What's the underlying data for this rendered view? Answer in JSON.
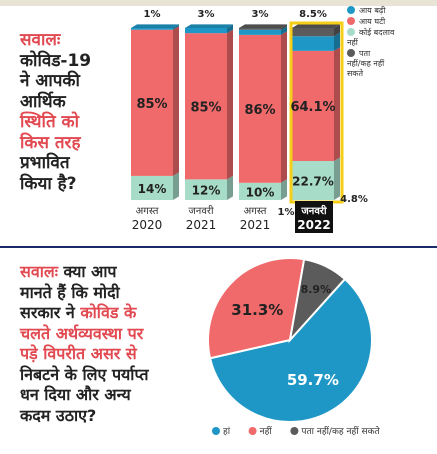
{
  "colors": {
    "red": "#f06a6b",
    "teal": "#a7dcc9",
    "blue": "#1e97c6",
    "gray": "#5b5b5b",
    "highlight_border": "#f6cd17",
    "label_bg": "#111111",
    "question_red": "#e24a52"
  },
  "question1": {
    "prefix": "सवालः",
    "line1": "कोविड-19",
    "line2": "ने आपकी",
    "line3": "आर्थिक",
    "line4": "स्थिति को",
    "line5": "किस तरह",
    "line6": "प्रभावित",
    "line7": "किया है?"
  },
  "question2": {
    "prefix": "सवालः",
    "line1_rest": "क्या आप",
    "line2": "मानते हैं कि मोदी",
    "line3_dark": "सरकार ने",
    "line3_red": "कोविड के",
    "line4": "चलते अर्थव्यवस्था पर",
    "line5": "पड़े विपरीत असर से",
    "line6": "निबटने के लिए पर्याप्त",
    "line7": "धन दिया और अन्य",
    "line8": "कदम उठाए?"
  },
  "chart_data": [
    {
      "type": "bar",
      "stacked": true,
      "categories": [
        {
          "month": "अगस्त",
          "year": "2020"
        },
        {
          "month": "जनवरी",
          "year": "2021"
        },
        {
          "month": "अगस्त",
          "year": "2021"
        },
        {
          "month": "जनवरी",
          "year": "2022"
        }
      ],
      "series": [
        {
          "name": "कोई बदलाव नहीं",
          "color": "teal",
          "values": [
            14,
            12,
            10,
            22.7
          ],
          "labels": [
            "14%",
            "12%",
            "10%",
            "22.7%"
          ]
        },
        {
          "name": "आय घटी",
          "color": "red",
          "values": [
            85,
            85,
            86,
            64.1
          ],
          "labels": [
            "85%",
            "85%",
            "86%",
            "64.1%"
          ]
        },
        {
          "name": "आय बढ़ी",
          "color": "blue",
          "values": [
            1,
            3,
            3,
            8.5
          ],
          "labels": [
            "1%",
            "3%",
            "3%",
            "8.5%"
          ]
        },
        {
          "name": "पता नहीं/कह नहीं सकते",
          "color": "gray",
          "values": [
            0,
            0,
            1,
            4.8
          ],
          "labels": [
            "",
            "",
            "1%",
            "4.8%"
          ]
        }
      ],
      "highlight_category": 3,
      "legend": {
        "position": "right",
        "items": [
          {
            "label": "आय बढ़ी",
            "color": "blue"
          },
          {
            "label": "आय घटी",
            "color": "red"
          },
          {
            "label": "कोई बदलाव",
            "label2": "नहीं",
            "color": "teal"
          },
          {
            "label": "पता",
            "label2": "नहीं/कह नहीं",
            "label3": "सकते",
            "color": "gray"
          }
        ]
      }
    },
    {
      "type": "pie",
      "slices": [
        {
          "name": "हां",
          "value": 59.7,
          "label": "59.7%",
          "color": "blue"
        },
        {
          "name": "नहीं",
          "value": 31.3,
          "label": "31.3%",
          "color": "red"
        },
        {
          "name": "पता नहीं/कह नहीं सकते",
          "value": 8.9,
          "label": "8.9%",
          "color": "gray"
        }
      ],
      "legend": {
        "position": "bottom",
        "items": [
          {
            "label": "हां",
            "color": "blue"
          },
          {
            "label": "नहीं",
            "color": "red"
          },
          {
            "label": "पता नहीं/कह नहीं सकते",
            "color": "gray"
          }
        ]
      }
    }
  ]
}
